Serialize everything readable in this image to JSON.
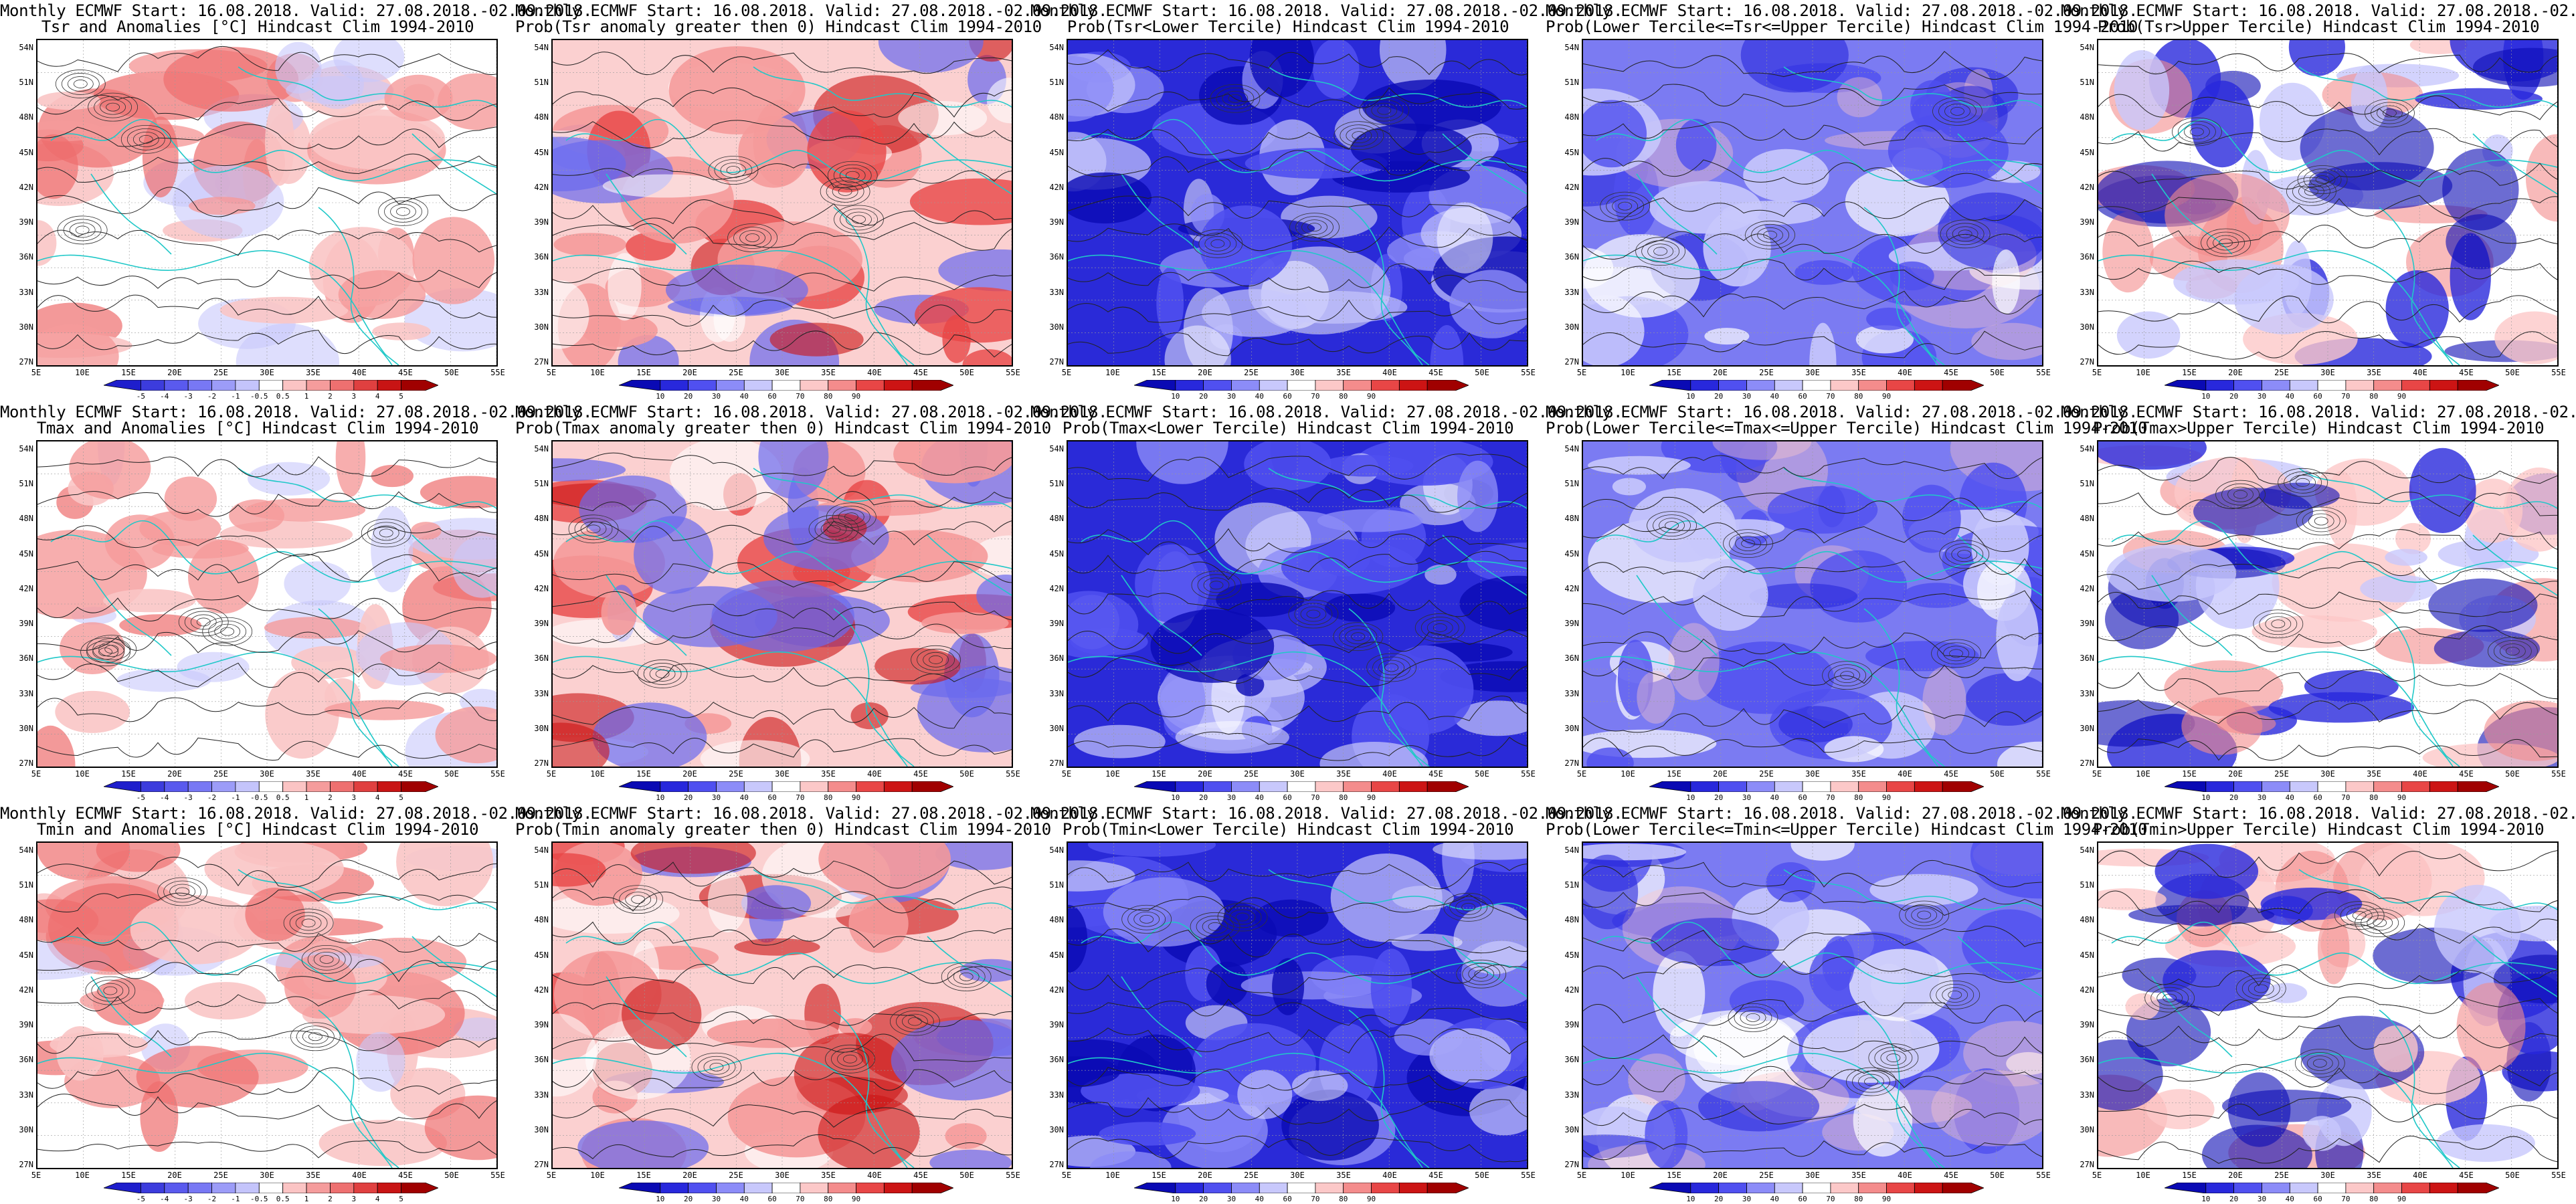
{
  "header_line": "Monthly ECMWF Start: 16.08.2018. Valid: 27.08.2018.-02.09.2018.",
  "latitude_labels": [
    "54N",
    "51N",
    "48N",
    "45N",
    "42N",
    "39N",
    "36N",
    "33N",
    "30N",
    "27N"
  ],
  "longitude_labels": [
    "5E",
    "10E",
    "15E",
    "20E",
    "25E",
    "30E",
    "35E",
    "40E",
    "45E",
    "50E",
    "55E"
  ],
  "colorbars": {
    "anomaly": {
      "labels": [
        "-5",
        "-4",
        "-3",
        "-2",
        "-1",
        "-0.5",
        "0.5",
        "1",
        "2",
        "3",
        "4",
        "5"
      ],
      "colors": [
        "#1e1ecc",
        "#3c3cdd",
        "#5a5aee",
        "#7878f4",
        "#9c9cf8",
        "#c4c4fb",
        "#ffffff",
        "#fbc4c4",
        "#f59c9c",
        "#ee7070",
        "#e04040",
        "#c81414",
        "#a00000"
      ]
    },
    "probability": {
      "labels": [
        "10",
        "20",
        "30",
        "40",
        "60",
        "70",
        "80",
        "90"
      ],
      "colors": [
        "#0a0ab4",
        "#2828dc",
        "#5050f0",
        "#8c8cf8",
        "#c8c8fc",
        "#ffffff",
        "#fcc8c8",
        "#f48c8c",
        "#e84646",
        "#cc1414",
        "#a00000"
      ]
    }
  },
  "panels": [
    {
      "title": "Tsr and Anomalies [°C] Hindcast Clim 1994-2010",
      "cbar": "anomaly",
      "scheme": "anom"
    },
    {
      "title": "Prob(Tsr anomaly greater then 0) Hindcast Clim 1994-2010",
      "cbar": "probability",
      "scheme": "pos"
    },
    {
      "title": "Prob(Tsr<Lower Tercile) Hindcast Clim 1994-2010",
      "cbar": "probability",
      "scheme": "low"
    },
    {
      "title": "Prob(Lower Tercile<=Tsr<=Upper Tercile) Hindcast Clim 1994-2010",
      "cbar": "probability",
      "scheme": "mid"
    },
    {
      "title": "Prob(Tsr>Upper Tercile) Hindcast Clim 1994-2010",
      "cbar": "probability",
      "scheme": "up"
    },
    {
      "title": "Tmax and Anomalies [°C] Hindcast Clim 1994-2010",
      "cbar": "anomaly",
      "scheme": "anom"
    },
    {
      "title": "Prob(Tmax anomaly greater then 0) Hindcast Clim 1994-2010",
      "cbar": "probability",
      "scheme": "pos"
    },
    {
      "title": "Prob(Tmax<Lower Tercile) Hindcast Clim 1994-2010",
      "cbar": "probability",
      "scheme": "low"
    },
    {
      "title": "Prob(Lower Tercile<=Tmax<=Upper Tercile) Hindcast Clim 1994-2010",
      "cbar": "probability",
      "scheme": "mid"
    },
    {
      "title": "Prob(Tmax>Upper Tercile) Hindcast Clim 1994-2010",
      "cbar": "probability",
      "scheme": "up"
    },
    {
      "title": "Tmin and Anomalies [°C] Hindcast Clim 1994-2010",
      "cbar": "anomaly",
      "scheme": "anom"
    },
    {
      "title": "Prob(Tmin anomaly greater then 0) Hindcast Clim 1994-2010",
      "cbar": "probability",
      "scheme": "pos"
    },
    {
      "title": "Prob(Tmin<Lower Tercile) Hindcast Clim 1994-2010",
      "cbar": "probability",
      "scheme": "low"
    },
    {
      "title": "Prob(Lower Tercile<=Tmin<=Upper Tercile) Hindcast Clim 1994-2010",
      "cbar": "probability",
      "scheme": "mid"
    },
    {
      "title": "Prob(Tmin>Upper Tercile) Hindcast Clim 1994-2010",
      "cbar": "probability",
      "scheme": "up"
    }
  ]
}
